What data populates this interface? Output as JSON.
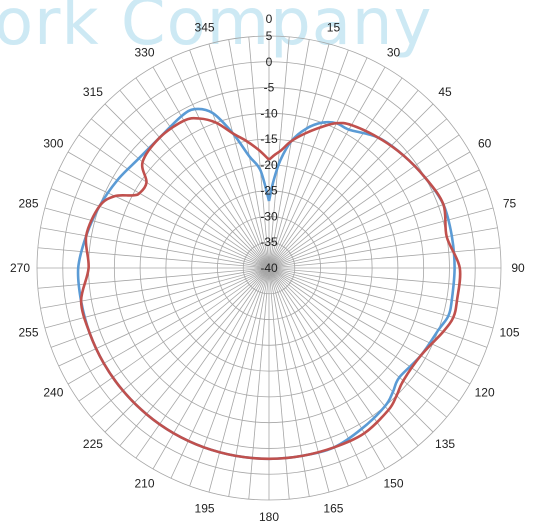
{
  "watermark": "ork Company",
  "chart_data": {
    "type": "polar-line",
    "title": "",
    "r_range": [
      -40,
      5
    ],
    "r_ticks": [
      5,
      0,
      -5,
      -10,
      -15,
      -20,
      -25,
      -30,
      -35,
      -40
    ],
    "r_tick_labels": [
      "5",
      "0",
      "-5",
      "-10",
      "-15",
      "-20",
      "-25",
      "-30",
      "-35",
      "-40"
    ],
    "angle_ticks": [
      0,
      15,
      30,
      45,
      60,
      75,
      90,
      105,
      120,
      135,
      150,
      165,
      180,
      195,
      210,
      225,
      240,
      255,
      270,
      285,
      300,
      315,
      330,
      345
    ],
    "angle_tick_labels": [
      "0",
      "15",
      "30",
      "45",
      "60",
      "75",
      "90",
      "105",
      "120",
      "135",
      "150",
      "165",
      "180",
      "195",
      "210",
      "225",
      "240",
      "255",
      "270",
      "285",
      "300",
      "315",
      "330",
      "345"
    ],
    "grid": true,
    "legend": "none",
    "series": [
      {
        "color": "#5b9bd5",
        "angles": [
          0,
          3,
          6,
          10,
          15,
          20,
          25,
          30,
          40,
          50,
          60,
          70,
          80,
          90,
          100,
          105,
          110,
          120,
          130,
          135,
          140,
          150,
          160,
          170,
          180,
          190,
          200,
          210,
          220,
          230,
          240,
          250,
          260,
          270,
          280,
          290,
          300,
          310,
          320,
          330,
          335,
          340,
          345,
          350,
          355,
          360
        ],
        "values": [
          -27,
          -23,
          -19,
          -15,
          -12,
          -10,
          -9,
          -9,
          -7,
          -6,
          -5,
          -4,
          -4,
          -4,
          -4,
          -4,
          -5,
          -6,
          -7,
          -6,
          -5,
          -4,
          -3,
          -3,
          -3,
          -3,
          -3,
          -3,
          -3,
          -3,
          -3,
          -3,
          -3,
          -3,
          -4,
          -5,
          -6,
          -7,
          -7,
          -6,
          -6,
          -8,
          -13,
          -18,
          -21,
          -27
        ]
      },
      {
        "color": "#c0504d",
        "angles": [
          0,
          3,
          6,
          10,
          15,
          20,
          25,
          30,
          40,
          50,
          60,
          70,
          80,
          90,
          100,
          105,
          110,
          120,
          130,
          135,
          140,
          150,
          160,
          170,
          180,
          190,
          200,
          210,
          220,
          230,
          240,
          250,
          260,
          270,
          280,
          290,
          295,
          298,
          300,
          305,
          310,
          320,
          330,
          335,
          340,
          345,
          350,
          355,
          360
        ],
        "values": [
          -19,
          -18,
          -17,
          -15,
          -13,
          -11,
          -9,
          -8,
          -7,
          -6,
          -5,
          -4,
          -5,
          -3,
          -3,
          -3,
          -4,
          -6,
          -6,
          -5,
          -4,
          -3,
          -3,
          -3,
          -3,
          -3,
          -3,
          -3,
          -3,
          -3,
          -3,
          -3,
          -3,
          -5,
          -4,
          -5,
          -7,
          -10,
          -11,
          -11,
          -8,
          -7,
          -7,
          -8,
          -10,
          -13,
          -15,
          -17,
          -19
        ]
      }
    ]
  }
}
